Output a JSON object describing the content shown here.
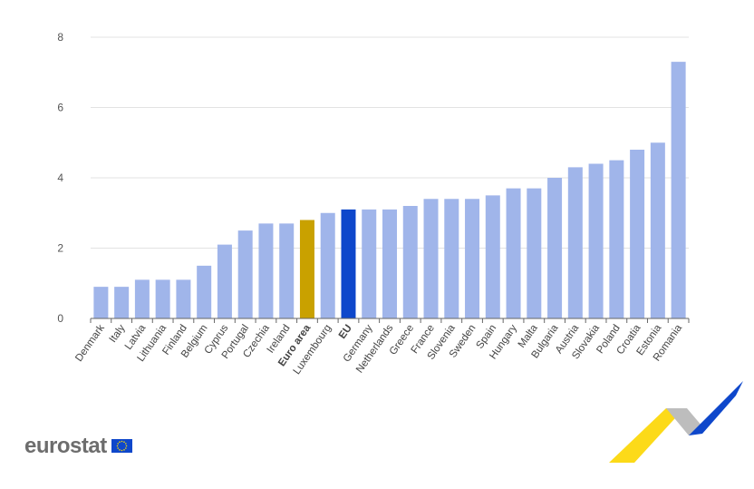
{
  "chart_data": {
    "type": "bar",
    "categories": [
      "Denmark",
      "Italy",
      "Latvia",
      "Lithuania",
      "Finland",
      "Belgium",
      "Cyprus",
      "Portugal",
      "Czechia",
      "Ireland",
      "Euro area",
      "Luxembourg",
      "EU",
      "Germany",
      "Netherlands",
      "Greece",
      "France",
      "Slovenia",
      "Sweden",
      "Spain",
      "Hungary",
      "Malta",
      "Bulgaria",
      "Austria",
      "Slovakia",
      "Poland",
      "Croatia",
      "Estonia",
      "Romania"
    ],
    "values": [
      0.9,
      0.9,
      1.1,
      1.1,
      1.1,
      1.5,
      2.1,
      2.5,
      2.7,
      2.7,
      2.8,
      3.0,
      3.1,
      3.1,
      3.1,
      3.2,
      3.4,
      3.4,
      3.4,
      3.5,
      3.7,
      3.7,
      4.0,
      4.3,
      4.4,
      4.5,
      4.8,
      5.0,
      7.3
    ],
    "highlight": {
      "Euro area": "#c9a100",
      "EU": "#0e47cb"
    },
    "bold_categories": [
      "Euro area",
      "EU"
    ],
    "default_color": "#a0b5ea",
    "ylim": [
      0,
      8
    ],
    "yticks": [
      0,
      2,
      4,
      6,
      8
    ],
    "grid": true,
    "title": "",
    "xlabel": "",
    "ylabel": ""
  },
  "logo": {
    "text": "eurostat"
  }
}
